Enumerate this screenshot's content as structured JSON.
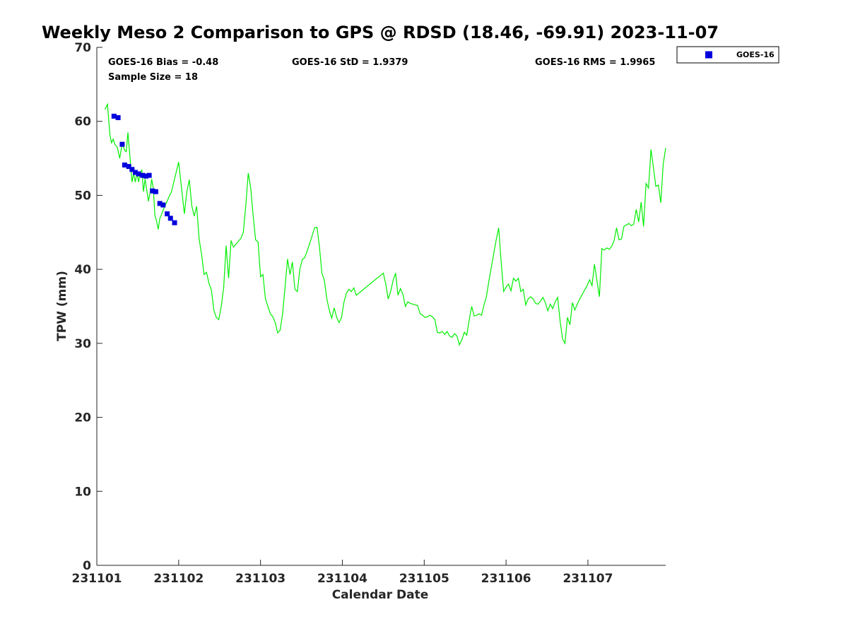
{
  "title": "Weekly Meso 2 Comparison to GPS @ RDSD (18.46, -69.91) 2023-11-07",
  "stats": {
    "bias": "GOES-16 Bias = -0.48",
    "std": "GOES-16 StD = 1.9379",
    "rms": "GOES-16 RMS = 1.9965",
    "sample_size": "Sample Size = 18"
  },
  "colors": {
    "gps_line": "#00ee00",
    "goes_marker": "#0000dd",
    "axes": "#262626"
  },
  "chart_data": {
    "type": "line",
    "xlabel": "Calendar Date",
    "ylabel": "TPW (mm)",
    "xlim": [
      0,
      6.95
    ],
    "ylim": [
      0,
      70
    ],
    "xticks": [
      0,
      1,
      2,
      3,
      4,
      5,
      6
    ],
    "xtick_labels": [
      "231101",
      "231102",
      "231103",
      "231104",
      "231105",
      "231106",
      "231107"
    ],
    "yticks": [
      0,
      10,
      20,
      30,
      40,
      50,
      60,
      70
    ],
    "grid": false,
    "legend": {
      "position": "outside-top-right",
      "entries": [
        "GOES-16"
      ]
    },
    "series": [
      {
        "style": "line",
        "color": "#00ee00",
        "x": [
          0.1,
          0.13,
          0.16,
          0.18,
          0.2,
          0.22,
          0.25,
          0.28,
          0.31,
          0.34,
          0.36,
          0.38,
          0.41,
          0.43,
          0.45,
          0.47,
          0.49,
          0.51,
          0.53,
          0.55,
          0.57,
          0.59,
          0.61,
          0.63,
          0.65,
          0.67,
          0.69,
          0.71,
          0.73,
          0.75,
          0.77,
          0.79,
          0.81,
          0.83,
          0.85,
          0.87,
          0.89,
          0.91,
          1.0,
          1.07,
          1.1,
          1.13,
          1.16,
          1.19,
          1.22,
          1.25,
          1.28,
          1.31,
          1.34,
          1.37,
          1.4,
          1.43,
          1.46,
          1.49,
          1.52,
          1.55,
          1.58,
          1.61,
          1.64,
          1.67,
          1.7,
          1.73,
          1.76,
          1.79,
          1.82,
          1.85,
          1.88,
          1.91,
          1.94,
          1.97,
          2.0,
          2.03,
          2.06,
          2.09,
          2.12,
          2.15,
          2.18,
          2.21,
          2.24,
          2.27,
          2.3,
          2.33,
          2.36,
          2.39,
          2.42,
          2.45,
          2.48,
          2.51,
          2.54,
          2.57,
          2.6,
          2.63,
          2.66,
          2.69,
          2.72,
          2.75,
          2.78,
          2.81,
          2.84,
          2.87,
          2.9,
          2.93,
          2.96,
          2.99,
          3.02,
          3.05,
          3.08,
          3.11,
          3.14,
          3.17,
          3.5,
          3.53,
          3.56,
          3.59,
          3.62,
          3.65,
          3.68,
          3.71,
          3.74,
          3.77,
          3.8,
          3.83,
          3.86,
          3.89,
          3.92,
          3.95,
          3.98,
          4.01,
          4.04,
          4.07,
          4.1,
          4.13,
          4.16,
          4.19,
          4.22,
          4.25,
          4.28,
          4.31,
          4.34,
          4.37,
          4.4,
          4.43,
          4.46,
          4.49,
          4.52,
          4.55,
          4.58,
          4.61,
          4.64,
          4.67,
          4.7,
          4.73,
          4.76,
          4.79,
          4.82,
          4.85,
          4.88,
          4.91,
          4.94,
          4.97,
          5.0,
          5.03,
          5.06,
          5.09,
          5.12,
          5.15,
          5.18,
          5.21,
          5.24,
          5.27,
          5.3,
          5.33,
          5.36,
          5.39,
          5.42,
          5.45,
          5.48,
          5.51,
          5.54,
          5.57,
          5.6,
          5.63,
          5.66,
          5.69,
          5.72,
          5.75,
          5.78,
          5.81,
          5.84,
          5.87,
          5.9,
          5.93,
          5.96,
          5.99,
          6.02,
          6.05,
          6.08,
          6.11,
          6.14,
          6.17,
          6.2,
          6.23,
          6.26,
          6.29,
          6.32,
          6.35,
          6.38,
          6.41,
          6.44,
          6.47,
          6.5,
          6.53,
          6.56,
          6.59,
          6.62,
          6.65,
          6.68,
          6.71,
          6.74,
          6.77,
          6.8,
          6.83,
          6.86,
          6.89,
          6.92,
          6.95
        ],
        "y": [
          61.6,
          62.3,
          58.2,
          57.1,
          57.6,
          56.9,
          56.5,
          55.0,
          57.0,
          56.1,
          55.9,
          58.5,
          54.5,
          51.8,
          53.0,
          51.8,
          53.0,
          51.8,
          53.0,
          53.4,
          50.5,
          52.2,
          50.7,
          49.2,
          50.3,
          52.2,
          51.0,
          47.3,
          46.5,
          45.4,
          46.9,
          47.4,
          48.0,
          48.5,
          49.0,
          49.5,
          50.0,
          50.4,
          54.5,
          47.5,
          50.5,
          52.1,
          48.6,
          47.2,
          48.5,
          44.1,
          42.0,
          39.3,
          39.6,
          38.1,
          37.2,
          34.5,
          33.5,
          33.2,
          35.0,
          37.5,
          43.2,
          38.8,
          43.9,
          43.0,
          43.4,
          43.8,
          44.2,
          45.0,
          48.6,
          53.0,
          51.0,
          47.3,
          44.0,
          43.7,
          39.0,
          39.3,
          36.0,
          35.0,
          34.0,
          33.6,
          32.8,
          31.4,
          31.8,
          34.0,
          37.6,
          41.4,
          39.3,
          41.0,
          37.3,
          37.0,
          40.0,
          41.3,
          41.6,
          42.5,
          43.5,
          44.5,
          45.6,
          45.7,
          43.0,
          39.5,
          38.5,
          36.0,
          34.5,
          33.4,
          34.8,
          33.5,
          32.8,
          33.5,
          35.6,
          36.8,
          37.3,
          37.0,
          37.5,
          36.5,
          39.5,
          38.0,
          36.0,
          37.0,
          38.5,
          39.5,
          36.5,
          37.4,
          36.6,
          35.0,
          35.6,
          35.4,
          35.3,
          35.2,
          35.1,
          34.0,
          33.8,
          33.5,
          33.6,
          33.8,
          33.6,
          33.2,
          31.5,
          31.4,
          31.6,
          31.2,
          31.6,
          31.0,
          30.8,
          31.3,
          31.0,
          29.8,
          30.5,
          31.5,
          31.1,
          33.2,
          35.0,
          33.7,
          33.8,
          34.0,
          33.8,
          35.2,
          36.3,
          38.4,
          40.3,
          42.2,
          44.0,
          45.6,
          41.0,
          37.0,
          37.6,
          38.0,
          37.1,
          38.8,
          38.4,
          38.8,
          37.0,
          37.3,
          35.2,
          36.0,
          36.3,
          36.0,
          35.4,
          35.3,
          35.7,
          36.2,
          35.5,
          34.4,
          35.3,
          34.7,
          35.6,
          36.2,
          33.0,
          30.6,
          30.0,
          33.5,
          32.5,
          35.5,
          34.5,
          35.3,
          36.0,
          36.6,
          37.2,
          37.8,
          38.6,
          37.8,
          40.7,
          38.5,
          36.3,
          42.8,
          42.6,
          42.9,
          42.7,
          43.1,
          43.9,
          45.6,
          44.0,
          44.1,
          45.8,
          46.0,
          46.2,
          45.9,
          46.1,
          48.1,
          46.4,
          49.1,
          45.8,
          51.6,
          51.0,
          56.2,
          53.8,
          51.2,
          51.4,
          49.0,
          54.2,
          56.4
        ]
      },
      {
        "name": "GOES-16",
        "style": "marker",
        "color": "#0000dd",
        "x": [
          0.21,
          0.26,
          0.31,
          0.34,
          0.39,
          0.43,
          0.47,
          0.51,
          0.56,
          0.6,
          0.64,
          0.68,
          0.72,
          0.77,
          0.81,
          0.86,
          0.9,
          0.95
        ],
        "y": [
          60.7,
          60.5,
          56.9,
          54.1,
          53.9,
          53.5,
          53.1,
          52.9,
          52.7,
          52.6,
          52.7,
          50.6,
          50.5,
          48.9,
          48.7,
          47.5,
          46.9,
          46.3
        ]
      }
    ]
  }
}
